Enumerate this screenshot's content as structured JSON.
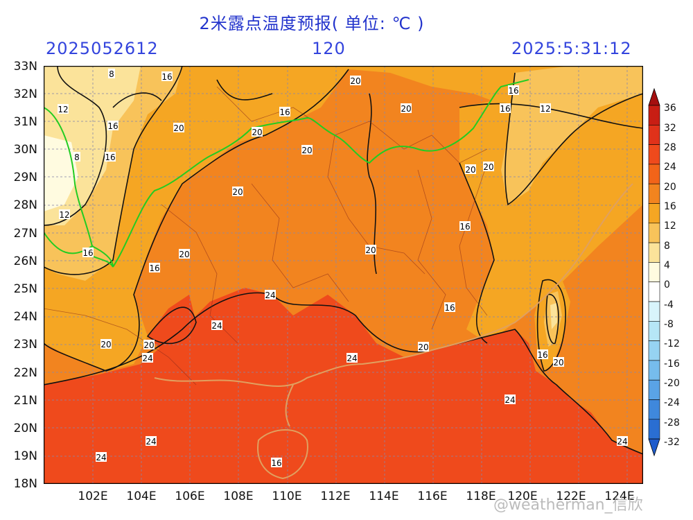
{
  "title": "2米露点温度预报( 单位: ℃ )",
  "init_time": "2025052612",
  "forecast_hour": "120",
  "valid_time": "2025:5:31:12",
  "lat_labels": [
    "33N",
    "32N",
    "31N",
    "30N",
    "29N",
    "28N",
    "27N",
    "26N",
    "25N",
    "24N",
    "23N",
    "22N",
    "21N",
    "20N",
    "19N",
    "18N"
  ],
  "lon_labels": [
    "102E",
    "104E",
    "106E",
    "108E",
    "110E",
    "112E",
    "114E",
    "116E",
    "118E",
    "120E",
    "122E",
    "124E"
  ],
  "colorbar": {
    "levels": [
      "36",
      "32",
      "28",
      "24",
      "20",
      "16",
      "12",
      "8",
      "4",
      "0",
      "-4",
      "-8",
      "-12",
      "-16",
      "-20",
      "-24",
      "-28",
      "-32"
    ],
    "colors": [
      "#a50f0f",
      "#c81e14",
      "#e0321a",
      "#ef4a1c",
      "#f26419",
      "#f2841f",
      "#f5a623",
      "#f8c35a",
      "#fbe39a",
      "#fffbe0",
      "#ffffff",
      "#d8f4fb",
      "#b6e6f6",
      "#96d3f2",
      "#76bcec",
      "#5aa3e6",
      "#3f88dc",
      "#2a6ed2",
      "#1f5ccc"
    ]
  },
  "contour_labels": [
    {
      "text": "8"
    },
    {
      "text": "16"
    },
    {
      "text": "20"
    },
    {
      "text": "12"
    },
    {
      "text": "16"
    },
    {
      "text": "16"
    },
    {
      "text": "20"
    },
    {
      "text": "20"
    },
    {
      "text": "8"
    },
    {
      "text": "16"
    },
    {
      "text": "20"
    },
    {
      "text": "20"
    },
    {
      "text": "16"
    },
    {
      "text": "12"
    },
    {
      "text": "20"
    },
    {
      "text": "20"
    },
    {
      "text": "12"
    },
    {
      "text": "16"
    },
    {
      "text": "20"
    },
    {
      "text": "20"
    },
    {
      "text": "16"
    },
    {
      "text": "16"
    },
    {
      "text": "20"
    },
    {
      "text": "16"
    },
    {
      "text": "24"
    },
    {
      "text": "24"
    },
    {
      "text": "16"
    },
    {
      "text": "20"
    },
    {
      "text": "20"
    },
    {
      "text": "24"
    },
    {
      "text": "20"
    },
    {
      "text": "24"
    },
    {
      "text": "16"
    },
    {
      "text": "20"
    },
    {
      "text": "24"
    },
    {
      "text": "24"
    },
    {
      "text": "24"
    },
    {
      "text": "24"
    },
    {
      "text": "16"
    }
  ],
  "watermark": "@weatherman_信欣"
}
